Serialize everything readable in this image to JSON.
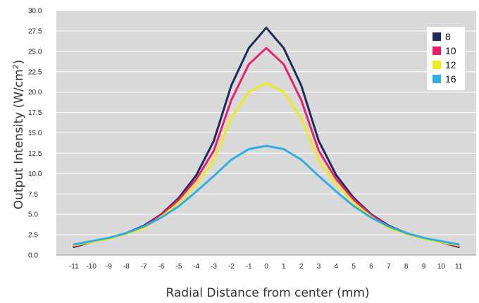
{
  "chart_data": {
    "type": "line",
    "title": "",
    "xlabel": "Radial Distance from center (mm)",
    "ylabel_main": "Output Intensity (W/cm",
    "ylabel_sup": "2",
    "ylabel_end": ")",
    "x": [
      -11,
      -10,
      -9,
      -8,
      -7,
      -6,
      -5,
      -4,
      -3,
      -2,
      -1,
      0,
      1,
      2,
      3,
      4,
      5,
      6,
      7,
      8,
      9,
      10,
      11
    ],
    "xticks": [
      "-11",
      "-10",
      "-9",
      "-8",
      "-7",
      "-6",
      "-5",
      "-4",
      "-3",
      "-2",
      "-1",
      "0",
      "1",
      "2",
      "3",
      "4",
      "5",
      "6",
      "7",
      "8",
      "9",
      "10",
      "11"
    ],
    "yticks": [
      "0.0",
      "2.5",
      "5.0",
      "7.5",
      "10.0",
      "12.5",
      "15.0",
      "17.5",
      "20.0",
      "22.5",
      "25.0",
      "27.5",
      "30.0"
    ],
    "ylim": [
      0,
      30
    ],
    "xlim": [
      -12,
      12
    ],
    "grid": true,
    "legend_position": "top-right",
    "series": [
      {
        "name": "8",
        "color": "#1f2a5e",
        "values": [
          1.0,
          1.6,
          2.1,
          2.7,
          3.6,
          5.0,
          7.0,
          9.8,
          14.0,
          20.8,
          25.4,
          27.9,
          25.4,
          20.8,
          14.0,
          9.8,
          7.0,
          5.0,
          3.6,
          2.7,
          2.1,
          1.6,
          1.0
        ]
      },
      {
        "name": "10",
        "color": "#e8206e",
        "values": [
          1.1,
          1.6,
          2.1,
          2.7,
          3.5,
          4.9,
          6.8,
          9.3,
          12.8,
          19.0,
          23.4,
          25.4,
          23.4,
          19.0,
          12.8,
          9.3,
          6.8,
          4.9,
          3.5,
          2.7,
          2.1,
          1.6,
          1.1
        ]
      },
      {
        "name": "12",
        "color": "#eeea1c",
        "values": [
          1.2,
          1.6,
          2.0,
          2.6,
          3.3,
          4.7,
          6.4,
          8.7,
          11.6,
          16.8,
          20.0,
          21.1,
          20.0,
          16.8,
          11.6,
          8.7,
          6.4,
          4.7,
          3.3,
          2.6,
          2.0,
          1.6,
          1.2
        ]
      },
      {
        "name": "16",
        "color": "#2faee3",
        "values": [
          1.3,
          1.7,
          2.1,
          2.7,
          3.5,
          4.6,
          6.0,
          7.8,
          9.7,
          11.7,
          13.0,
          13.4,
          13.0,
          11.7,
          9.7,
          7.8,
          6.0,
          4.6,
          3.5,
          2.7,
          2.1,
          1.7,
          1.3
        ]
      }
    ]
  }
}
